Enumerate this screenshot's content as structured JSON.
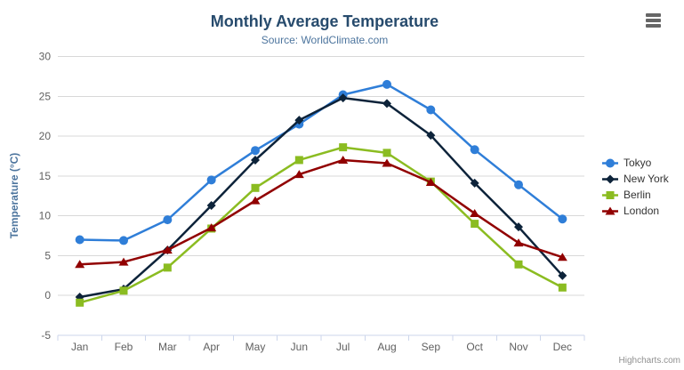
{
  "chart_data": {
    "type": "line",
    "title": "Monthly Average Temperature",
    "subtitle": "Source: WorldClimate.com",
    "categories": [
      "Jan",
      "Feb",
      "Mar",
      "Apr",
      "May",
      "Jun",
      "Jul",
      "Aug",
      "Sep",
      "Oct",
      "Nov",
      "Dec"
    ],
    "xlabel": "",
    "ylabel": "Temperature (°C)",
    "ylim": [
      -5,
      30
    ],
    "y_tick_interval": 5,
    "grid": true,
    "legend_position": "right",
    "series": [
      {
        "name": "Tokyo",
        "marker": "circle",
        "color": "#2f7ed8",
        "values": [
          7.0,
          6.9,
          9.5,
          14.5,
          18.2,
          21.5,
          25.2,
          26.5,
          23.3,
          18.3,
          13.9,
          9.6
        ]
      },
      {
        "name": "New York",
        "marker": "diamond",
        "color": "#0d233a",
        "values": [
          -0.2,
          0.8,
          5.7,
          11.3,
          17.0,
          22.0,
          24.8,
          24.1,
          20.1,
          14.1,
          8.6,
          2.5
        ]
      },
      {
        "name": "Berlin",
        "marker": "square",
        "color": "#8bbc21",
        "values": [
          -0.9,
          0.6,
          3.5,
          8.4,
          13.5,
          17.0,
          18.6,
          17.9,
          14.3,
          9.0,
          3.9,
          1.0
        ]
      },
      {
        "name": "London",
        "marker": "triangle",
        "color": "#910000",
        "values": [
          3.9,
          4.2,
          5.7,
          8.5,
          11.9,
          15.2,
          17.0,
          16.6,
          14.2,
          10.3,
          6.6,
          4.8
        ]
      }
    ],
    "colors": {
      "title": "#274b6d",
      "subtitle": "#4d759e",
      "axis_title": "#4d759e",
      "axis_label": "#606060",
      "grid": "#d8d8d8",
      "axis_line": "#ccd6eb",
      "legend_text": "#333333",
      "credits": "#909090",
      "menu_icon": "#666666"
    }
  },
  "credits": {
    "label": "Highcharts.com"
  }
}
